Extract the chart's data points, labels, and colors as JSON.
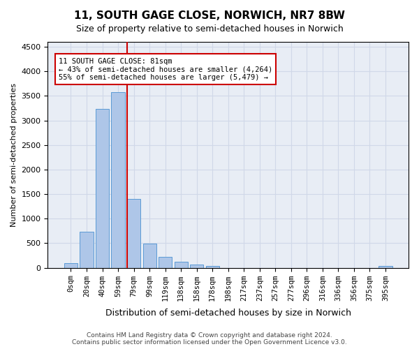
{
  "title": "11, SOUTH GAGE CLOSE, NORWICH, NR7 8BW",
  "subtitle": "Size of property relative to semi-detached houses in Norwich",
  "xlabel": "Distribution of semi-detached houses by size in Norwich",
  "ylabel": "Number of semi-detached properties",
  "annotation_text_line1": "11 SOUTH GAGE CLOSE: 81sqm",
  "annotation_text_line2": "← 43% of semi-detached houses are smaller (4,264)",
  "annotation_text_line3": "55% of semi-detached houses are larger (5,479) →",
  "bar_color": "#aec6e8",
  "bar_edgecolor": "#5b9bd5",
  "vline_color": "#cc0000",
  "annotation_box_color": "#cc0000",
  "grid_color": "#d0d8e8",
  "background_color": "#e8edf5",
  "footer_line1": "Contains HM Land Registry data © Crown copyright and database right 2024.",
  "footer_line2": "Contains public sector information licensed under the Open Government Licence v3.0.",
  "bin_labels": [
    "0sqm",
    "20sqm",
    "40sqm",
    "59sqm",
    "79sqm",
    "99sqm",
    "119sqm",
    "138sqm",
    "158sqm",
    "178sqm",
    "198sqm",
    "217sqm",
    "237sqm",
    "257sqm",
    "277sqm",
    "296sqm",
    "316sqm",
    "336sqm",
    "356sqm",
    "375sqm",
    "395sqm"
  ],
  "bar_heights": [
    100,
    730,
    3230,
    3570,
    1400,
    495,
    220,
    120,
    70,
    40,
    0,
    0,
    0,
    0,
    0,
    0,
    0,
    0,
    0,
    0,
    40
  ],
  "ylim": [
    0,
    4600
  ],
  "yticks": [
    0,
    500,
    1000,
    1500,
    2000,
    2500,
    3000,
    3500,
    4000,
    4500
  ],
  "vline_pos": 3.575
}
